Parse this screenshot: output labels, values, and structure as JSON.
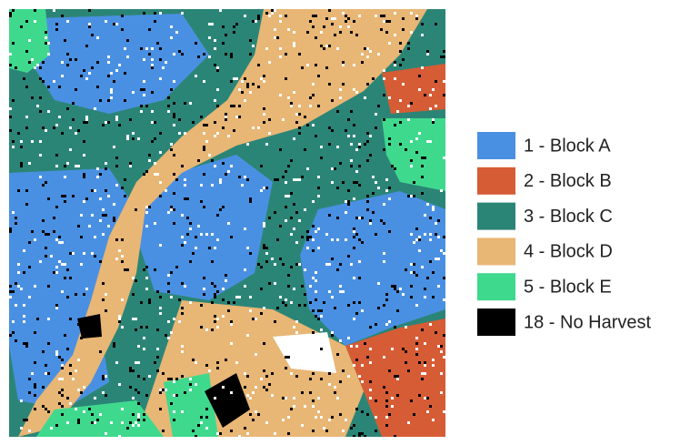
{
  "legend": {
    "items": [
      {
        "label": "1 - Block A",
        "color": "#4a90e2"
      },
      {
        "label": "2 - Block B",
        "color": "#d65c35"
      },
      {
        "label": "3 - Block C",
        "color": "#2b8577"
      },
      {
        "label": "4 - Block D",
        "color": "#e8b675"
      },
      {
        "label": "5 - Block E",
        "color": "#3fd98e"
      },
      {
        "label": "18 - No Harvest",
        "color": "#000000"
      }
    ]
  }
}
